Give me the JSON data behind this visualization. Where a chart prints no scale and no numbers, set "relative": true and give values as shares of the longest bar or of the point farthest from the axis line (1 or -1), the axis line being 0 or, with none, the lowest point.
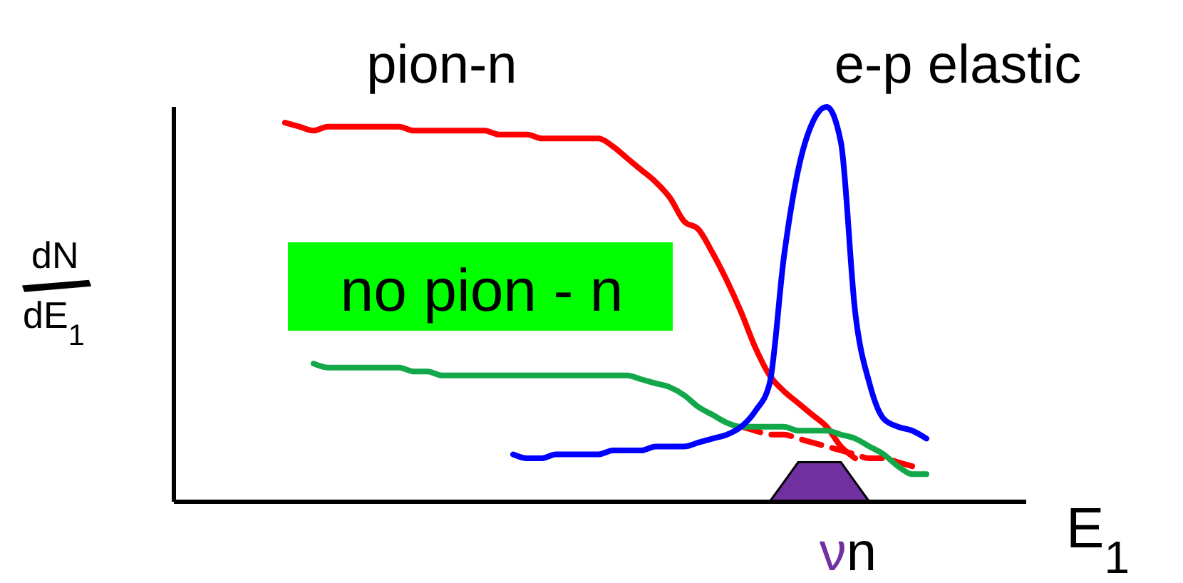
{
  "chart_data": {
    "type": "line",
    "relative": true,
    "annotations": [
      "pion-n",
      "no pion - n",
      "e-p elastic"
    ],
    "legend": false,
    "xlabel": "E$_{1}$",
    "ylabel": "dN/dE$_{1}$",
    "categories": [
      null,
      null,
      null,
      null,
      null,
      null,
      null,
      null,
      null,
      null,
      null,
      null,
      null,
      null,
      null,
      null,
      null,
      null,
      null,
      null,
      null,
      null,
      null,
      null,
      null,
      null,
      null,
      null,
      null,
      null,
      null,
      null,
      null,
      null,
      null,
      null,
      null,
      null,
      null,
      null,
      null,
      null,
      null,
      null,
      null,
      null,
      null,
      null,
      null,
      null,
      null,
      null,
      null,
      null,
      null,
      null,
      null,
      null,
      null,
      null,
      null
    ],
    "series": [
      {
        "color": "#ff0000",
        "values": [
          null,
          null,
          null,
          null,
          null,
          null,
          null,
          null,
          0.96,
          0.95,
          0.94,
          0.95,
          0.95,
          0.95,
          0.95,
          0.95,
          0.95,
          0.94,
          0.94,
          0.94,
          0.94,
          0.94,
          0.94,
          0.93,
          0.93,
          0.93,
          0.92,
          0.92,
          0.92,
          0.92,
          0.92,
          0.9,
          0.87,
          0.84,
          0.81,
          0.77,
          0.71,
          0.69,
          0.63,
          0.56,
          0.48,
          0.39,
          0.32,
          0.28,
          0.25,
          0.22,
          0.19,
          0.14,
          0.11,
          null,
          null,
          null,
          null,
          null,
          null,
          null,
          null,
          null,
          null,
          null,
          null
        ]
      },
      {
        "type": "line",
        "color": "#ff0000",
        "line_style": "dashed",
        "values": [
          null,
          null,
          null,
          null,
          null,
          null,
          null,
          null,
          null,
          null,
          null,
          null,
          null,
          null,
          null,
          null,
          null,
          null,
          null,
          null,
          null,
          null,
          null,
          null,
          null,
          null,
          null,
          null,
          null,
          null,
          null,
          null,
          null,
          null,
          null,
          null,
          null,
          null,
          null,
          null,
          0.19,
          0.18,
          0.17,
          0.17,
          0.16,
          0.15,
          0.14,
          0.13,
          0.12,
          0.11,
          0.11,
          0.1,
          0.09,
          null,
          null,
          null,
          null,
          null,
          null,
          null,
          null
        ]
      },
      {
        "type": "line",
        "color": "#12a84a",
        "values": [
          null,
          null,
          null,
          null,
          null,
          null,
          null,
          null,
          null,
          null,
          0.35,
          0.34,
          0.34,
          0.34,
          0.34,
          0.34,
          0.34,
          0.33,
          0.33,
          0.32,
          0.32,
          0.32,
          0.32,
          0.32,
          0.32,
          0.32,
          0.32,
          0.32,
          0.32,
          0.32,
          0.32,
          0.32,
          0.32,
          0.31,
          0.3,
          0.29,
          0.27,
          0.24,
          0.22,
          0.2,
          0.19,
          0.19,
          0.19,
          0.19,
          0.18,
          0.18,
          0.18,
          0.17,
          0.16,
          0.14,
          0.12,
          0.09,
          0.07,
          0.07,
          null,
          null,
          null,
          null,
          null,
          null,
          null
        ]
      },
      {
        "type": "line",
        "color": "#0000ff",
        "values": [
          null,
          null,
          null,
          null,
          null,
          null,
          null,
          null,
          null,
          null,
          null,
          null,
          null,
          null,
          null,
          null,
          null,
          null,
          null,
          null,
          null,
          null,
          null,
          null,
          0.12,
          0.11,
          0.11,
          0.12,
          0.12,
          0.12,
          0.12,
          0.13,
          0.13,
          0.13,
          0.14,
          0.14,
          0.14,
          0.15,
          0.16,
          0.17,
          0.19,
          0.23,
          0.3,
          0.62,
          0.84,
          0.96,
          1,
          0.91,
          0.48,
          0.3,
          0.21,
          0.19,
          0.18,
          0.16,
          null,
          null,
          null,
          null,
          null,
          null,
          null
        ]
      },
      {
        "name": "νn",
        "type": "area",
        "color": "#7030a0",
        "values": [
          null,
          null,
          null,
          null,
          null,
          null,
          null,
          null,
          null,
          null,
          null,
          null,
          null,
          null,
          null,
          null,
          null,
          null,
          null,
          null,
          null,
          null,
          null,
          null,
          null,
          null,
          null,
          null,
          null,
          null,
          null,
          null,
          null,
          null,
          null,
          null,
          null,
          null,
          null,
          null,
          null,
          null,
          0,
          0.05,
          0.1,
          0.1,
          0.1,
          0.1,
          0.05,
          0,
          null,
          null,
          null,
          null,
          null,
          null,
          null,
          null,
          null,
          null,
          null
        ]
      }
    ]
  }
}
